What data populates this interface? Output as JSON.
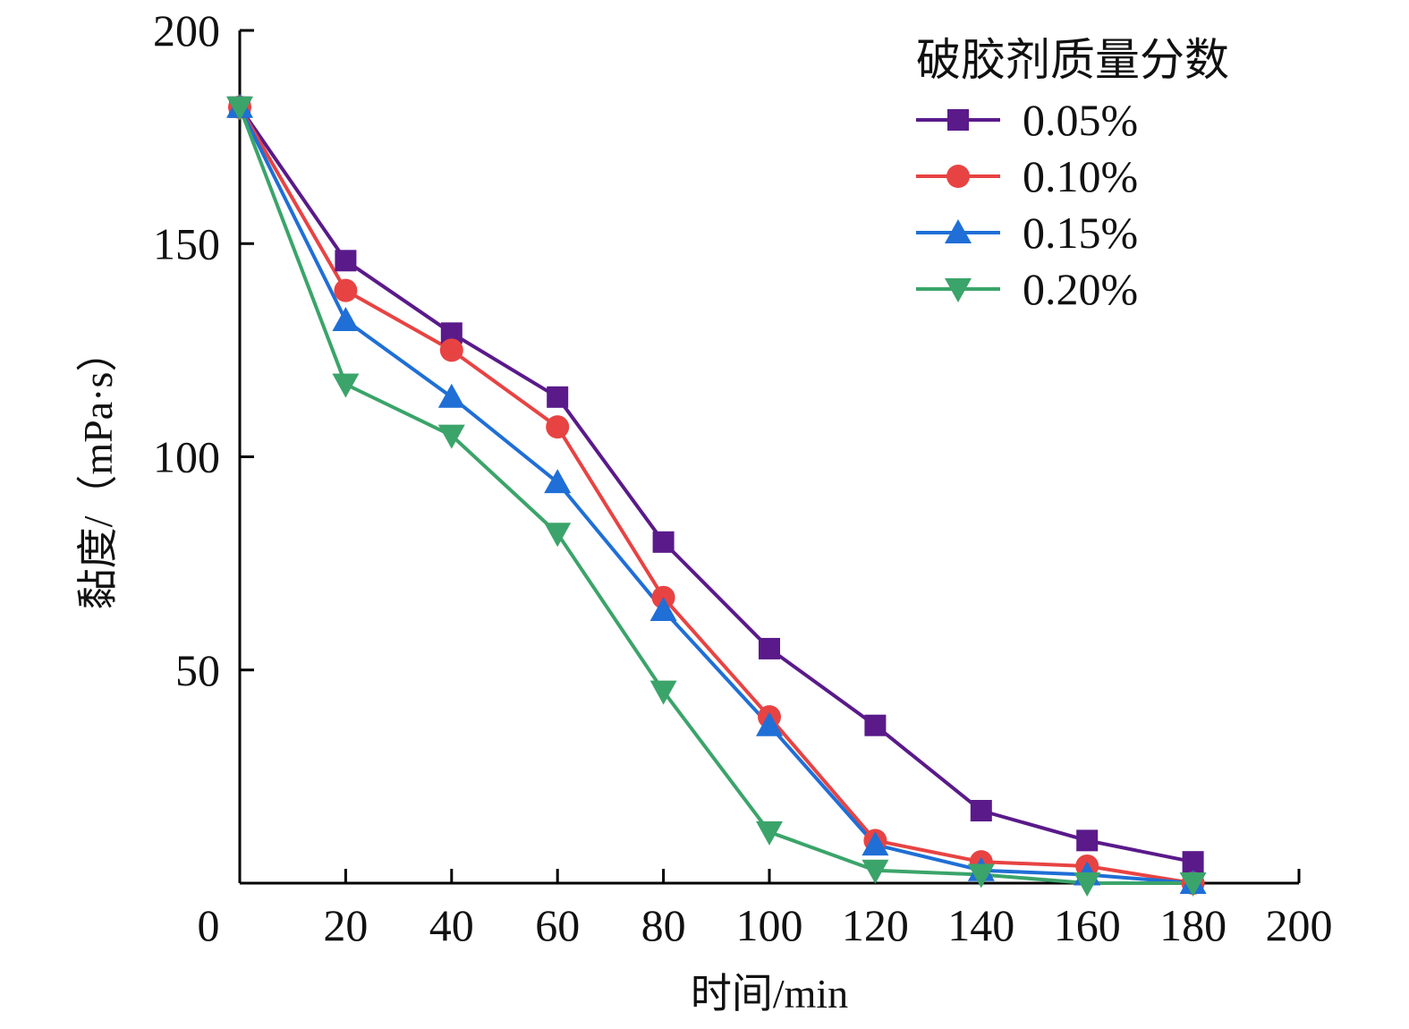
{
  "chart_data": {
    "type": "line",
    "title": "",
    "xlabel": "时间/min",
    "ylabel": "黏度/（mPa·s）",
    "xlim": [
      0,
      200
    ],
    "ylim": [
      0,
      200
    ],
    "xticks": [
      0,
      20,
      40,
      60,
      80,
      100,
      120,
      140,
      160,
      180,
      200
    ],
    "yticks": [
      50,
      100,
      150,
      200
    ],
    "x": [
      0,
      20,
      40,
      60,
      80,
      100,
      120,
      140,
      160,
      180
    ],
    "grid": false,
    "legend_position": "top-right",
    "legend_title": "破胶剂质量分数",
    "series": [
      {
        "name": "0.05%",
        "color": "#5a1a8a",
        "marker": "square",
        "values": [
          182,
          146,
          129,
          114,
          80,
          55,
          37,
          17,
          10,
          5
        ]
      },
      {
        "name": "0.10%",
        "color": "#e84343",
        "marker": "circle",
        "values": [
          182,
          139,
          125,
          107,
          67,
          39,
          10,
          5,
          4,
          0
        ]
      },
      {
        "name": "0.15%",
        "color": "#1f6fd6",
        "marker": "triangle-up",
        "values": [
          182,
          132,
          114,
          94,
          64,
          37,
          9,
          3,
          2,
          0
        ]
      },
      {
        "name": "0.20%",
        "color": "#3ba46a",
        "marker": "triangle-down",
        "values": [
          182,
          117,
          105,
          82,
          45,
          12,
          3,
          2,
          0,
          0
        ]
      }
    ]
  }
}
